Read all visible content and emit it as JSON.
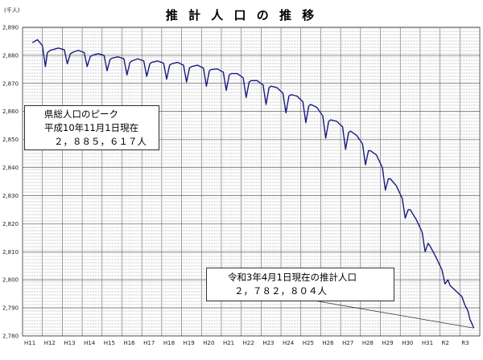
{
  "chart_data": {
    "type": "line",
    "title": "推 計 人 口 の 推 移",
    "ylabel": "(千人)",
    "ylim": [
      2780,
      2890
    ],
    "yticks": [
      "2,890",
      "2,880",
      "2,870",
      "2,860",
      "2,850",
      "2,840",
      "2,830",
      "2,820",
      "2,810",
      "2,800",
      "2,790",
      "2,780"
    ],
    "categories": [
      "H11",
      "H12",
      "H13",
      "H14",
      "H15",
      "H16",
      "H17",
      "H18",
      "H19",
      "H20",
      "H21",
      "H22",
      "H23",
      "H24",
      "H25",
      "H26",
      "H27",
      "H28",
      "H29",
      "H30",
      "H31",
      "R2",
      "R3"
    ],
    "grid": true,
    "series": [
      {
        "color": "#1a1a80",
        "x": [
          0,
          0.25,
          0.5,
          0.65,
          0.75,
          0.9,
          1.0,
          1.3,
          1.6,
          1.75,
          1.9,
          2.0,
          2.3,
          2.6,
          2.75,
          2.9,
          3.0,
          3.3,
          3.6,
          3.75,
          3.9,
          4.0,
          4.3,
          4.6,
          4.75,
          4.9,
          5.0,
          5.3,
          5.6,
          5.75,
          5.9,
          6.0,
          6.3,
          6.6,
          6.75,
          6.9,
          7.0,
          7.3,
          7.6,
          7.75,
          7.9,
          8.0,
          8.3,
          8.6,
          8.75,
          8.9,
          9.0,
          9.3,
          9.6,
          9.75,
          9.9,
          10.0,
          10.3,
          10.6,
          10.75,
          10.9,
          11.0,
          11.3,
          11.6,
          11.75,
          11.9,
          12.0,
          12.3,
          12.6,
          12.75,
          12.9,
          13.0,
          13.3,
          13.6,
          13.75,
          13.9,
          14.0,
          14.3,
          14.6,
          14.75,
          14.9,
          15.0,
          15.3,
          15.6,
          15.75,
          15.9,
          16.0,
          16.3,
          16.6,
          16.75,
          16.9,
          17.0,
          17.3,
          17.6,
          17.75,
          17.9,
          18.0,
          18.3,
          18.6,
          18.75,
          18.9,
          19.0,
          19.3,
          19.6,
          19.75,
          19.9,
          20.0,
          20.3,
          20.6,
          20.75,
          20.9,
          21.0,
          21.3,
          21.6,
          21.75,
          21.9,
          22.0,
          22.2
        ],
        "values": [
          2884.5,
          2885.6,
          2883.5,
          2876.0,
          2881.0,
          2881.8,
          2882.0,
          2882.6,
          2882.0,
          2877.0,
          2880.5,
          2881.0,
          2881.8,
          2881.0,
          2876.0,
          2879.5,
          2880.0,
          2880.6,
          2880.0,
          2874.5,
          2878.5,
          2879.0,
          2879.5,
          2878.8,
          2873.0,
          2877.5,
          2878.0,
          2878.8,
          2878.0,
          2872.5,
          2877.0,
          2877.5,
          2878.0,
          2877.2,
          2871.5,
          2876.5,
          2877.0,
          2877.5,
          2876.5,
          2870.5,
          2875.5,
          2876.0,
          2876.5,
          2875.5,
          2869.0,
          2874.5,
          2875.0,
          2875.2,
          2874.0,
          2867.5,
          2873.0,
          2873.5,
          2873.5,
          2872.0,
          2865.0,
          2870.5,
          2871.0,
          2871.0,
          2869.5,
          2862.5,
          2868.5,
          2869.0,
          2868.5,
          2866.5,
          2859.5,
          2865.5,
          2866.0,
          2865.5,
          2863.5,
          2856.0,
          2862.0,
          2862.5,
          2861.5,
          2858.5,
          2850.5,
          2856.5,
          2857.0,
          2856.5,
          2854.5,
          2846.5,
          2852.5,
          2853.0,
          2851.5,
          2848.5,
          2841.0,
          2846.0,
          2846.0,
          2844.5,
          2840.0,
          2832.0,
          2836.0,
          2836.0,
          2833.5,
          2829.0,
          2822.0,
          2825.0,
          2825.0,
          2821.5,
          2817.0,
          2810.0,
          2813.0,
          2812.0,
          2808.0,
          2803.5,
          2798.5,
          2800.0,
          2798.0,
          2796.0,
          2794.0,
          2791.0,
          2789.0,
          2786.0,
          2782.8
        ]
      }
    ],
    "annotations": [
      {
        "lines": [
          "県総人口のピーク",
          "平成10年11月1日現在",
          "２，８８５，６１７人"
        ]
      },
      {
        "lines": [
          "令和3年4月1日現在の推計人口",
          "２，７８２，８０４人"
        ]
      }
    ]
  }
}
